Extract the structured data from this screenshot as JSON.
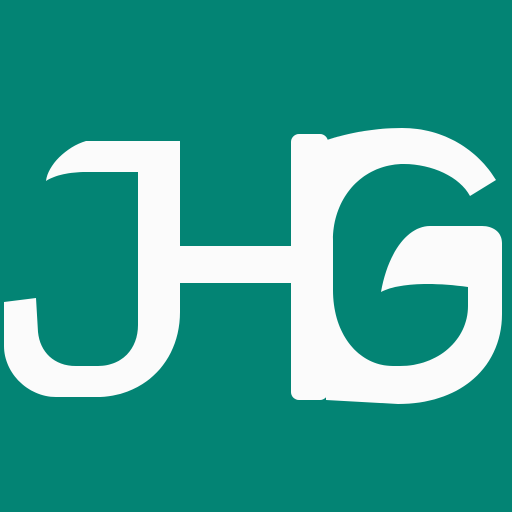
{
  "logo": {
    "lettering": "JHG",
    "background_color": "#038474",
    "glyph_color": "#FBFBFB"
  }
}
